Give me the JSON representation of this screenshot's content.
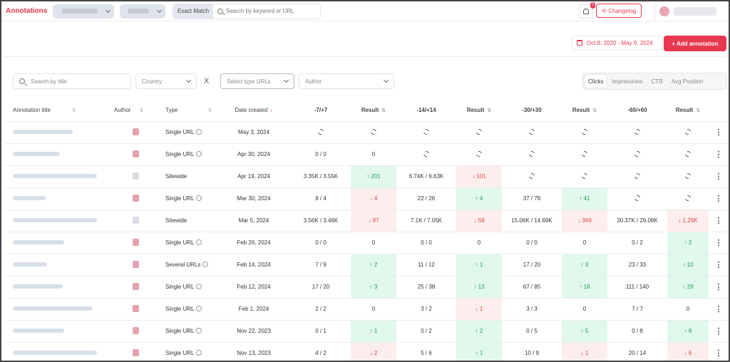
{
  "header": {
    "brand": "Annotations",
    "exact_match": "Exact Match",
    "search_placeholder": "Search by keyword or URL",
    "notif_count": "3",
    "changelog": "Changelog"
  },
  "toolbar": {
    "date_range": "Oct 8, 2020 - May 9, 2024",
    "add_button": "+ Add annotation"
  },
  "filters": {
    "title_placeholder": "Search by title",
    "country": "Country",
    "clear": "X",
    "type_urls": "Select type URLs",
    "author": "Author",
    "metric_tabs": [
      "Clicks",
      "Impressions",
      "CTR",
      "Avg Position"
    ],
    "active_metric": "Clicks"
  },
  "columns": [
    "Annotation title",
    "Author",
    "Type",
    "Date created",
    "-7/+7",
    "Result",
    "-14/+14",
    "Result",
    "-30/+30",
    "Result",
    "-60/+60",
    "Result"
  ],
  "rows": [
    {
      "type": "Single URL",
      "date": "May 3, 2024",
      "p7": "",
      "r7": "",
      "p14": "",
      "r14": "",
      "p30": "",
      "r30": "",
      "p60": "",
      "r60": ""
    },
    {
      "type": "Single URL",
      "date": "Apr 30, 2024",
      "p7": "0 / 0",
      "r7": "0",
      "p14": "",
      "r14": "",
      "p30": "",
      "r30": "",
      "p60": "",
      "r60": ""
    },
    {
      "type": "Sitewide",
      "date": "Apr 19, 2024",
      "p7": "3.35K / 3.55K",
      "r7": "↑ 201",
      "p14": "6.74K / 6.63K",
      "r14": "↓ 101",
      "p30": "",
      "r30": "",
      "p60": "",
      "r60": ""
    },
    {
      "type": "Single URL",
      "date": "Mar 30, 2024",
      "p7": "8 / 4",
      "r7": "↓ 4",
      "p14": "22 / 26",
      "r14": "↑ 4",
      "p30": "37 / 78",
      "r30": "↑ 41",
      "p60": "",
      "r60": ""
    },
    {
      "type": "Sitewide",
      "date": "Mar 5, 2024",
      "p7": "3.56K / 3.46K",
      "r7": "↓ 97",
      "p14": "7.1K / 7.05K",
      "r14": "↓ 58",
      "p30": "15.06K / 14.69K",
      "r30": "↓ 369",
      "p60": "30.37K / 29.08K",
      "r60": "↓ 1.29K"
    },
    {
      "type": "Single URL",
      "date": "Feb 26, 2024",
      "p7": "0 / 0",
      "r7": "0",
      "p14": "0 / 0",
      "r14": "0",
      "p30": "0 / 0",
      "r30": "0",
      "p60": "0 / 2",
      "r60": "↑ 2"
    },
    {
      "type": "Several URLs",
      "date": "Feb 14, 2024",
      "p7": "7 / 9",
      "r7": "↑ 2",
      "p14": "11 / 12",
      "r14": "↑ 1",
      "p30": "17 / 20",
      "r30": "↑ 3",
      "p60": "23 / 33",
      "r60": "↑ 10"
    },
    {
      "type": "Single URL",
      "date": "Feb 12, 2024",
      "p7": "17 / 20",
      "r7": "↑ 3",
      "p14": "25 / 38",
      "r14": "↑ 13",
      "p30": "67 / 85",
      "r30": "↑ 18",
      "p60": "111 / 140",
      "r60": "↑ 29"
    },
    {
      "type": "Single URL",
      "date": "Feb 1, 2024",
      "p7": "2 / 2",
      "r7": "0",
      "p14": "3 / 2",
      "r14": "↓ 1",
      "p30": "3 / 3",
      "r30": "0",
      "p60": "7 / 7",
      "r60": "0"
    },
    {
      "type": "Single URL",
      "date": "Nov 22, 2023",
      "p7": "0 / 1",
      "r7": "↑ 1",
      "p14": "0 / 2",
      "r14": "↑ 2",
      "p30": "0 / 5",
      "r30": "↑ 5",
      "p60": "0 / 8",
      "r60": "↑ 8"
    },
    {
      "type": "Single URL",
      "date": "Nov 13, 2023",
      "p7": "4 / 2",
      "r7": "↓ 2",
      "p14": "5 / 6",
      "r14": "↑ 1",
      "p30": "10 / 9",
      "r30": "↓ 1",
      "p60": "20 / 14",
      "r60": "↓ 6"
    }
  ]
}
